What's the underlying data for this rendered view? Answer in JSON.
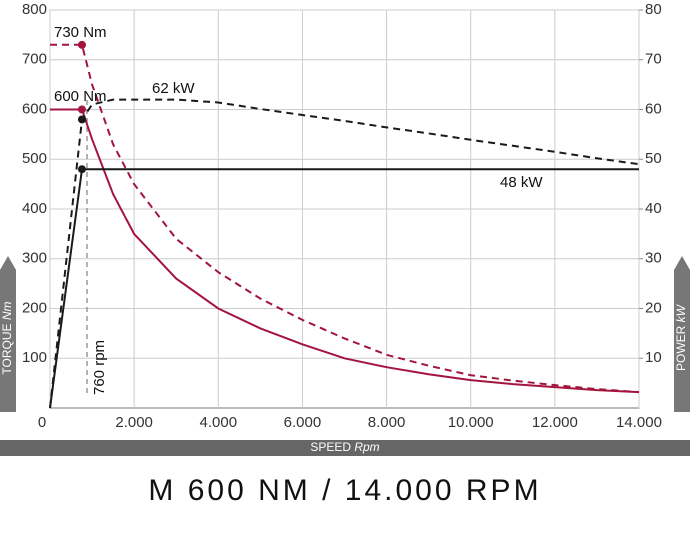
{
  "chart_data": {
    "type": "line",
    "title": "M 600 NM / 14.000 RPM",
    "xlabel": "SPEED",
    "xlabel_unit": "Rpm",
    "ylabel": "TORQUE",
    "ylabel_unit": "Nm",
    "y2label": "POWER",
    "y2label_unit": "kW",
    "x": [
      0,
      760,
      1000,
      1500,
      2000,
      3000,
      4000,
      5000,
      6000,
      7000,
      8000,
      9000,
      10000,
      11000,
      12000,
      13000,
      14000
    ],
    "series": [
      {
        "color": "#a3143f",
        "dash": false,
        "axis": "y",
        "values": [
          600,
          600,
          540,
          430,
          350,
          260,
          200,
          160,
          128,
          100,
          82,
          68,
          56,
          48,
          42,
          36,
          32
        ]
      },
      {
        "color": "#a3143f",
        "dash": true,
        "axis": "y",
        "values": [
          730,
          730,
          650,
          530,
          450,
          340,
          273,
          220,
          177,
          140,
          107,
          85,
          66,
          55,
          46,
          38,
          32
        ]
      },
      {
        "color": "#1a1a1a",
        "dash": false,
        "axis": "y2",
        "values": [
          0,
          48,
          48,
          48,
          48,
          48,
          48,
          48,
          48,
          48,
          48,
          48,
          48,
          48,
          48,
          48,
          48
        ]
      },
      {
        "color": "#1a1a1a",
        "dash": true,
        "axis": "y2",
        "values": [
          0,
          58,
          61,
          62,
          62,
          62,
          61.4,
          60.1,
          58.9,
          57.7,
          56.4,
          55.2,
          53.9,
          52.7,
          51.5,
          50.2,
          49
        ]
      }
    ],
    "annotations": [
      "730 Nm",
      "600 Nm",
      "62 kW",
      "48 kW",
      "760 rpm"
    ],
    "xlim": [
      0,
      14000
    ],
    "xticks": [
      0,
      {
        "value": 2000,
        "label": "2.000"
      },
      {
        "value": 4000,
        "label": "4.000"
      },
      {
        "value": 6000,
        "label": "6.000"
      },
      {
        "value": 8000,
        "label": "8.000"
      },
      {
        "value": 10000,
        "label": "10.000"
      },
      {
        "value": 12000,
        "label": "12.000"
      },
      {
        "value": 14000,
        "label": "14.000"
      }
    ],
    "ylim": [
      0,
      800
    ],
    "yticks": [
      100,
      200,
      300,
      400,
      500,
      600,
      700,
      800
    ],
    "y2lim": [
      0,
      80
    ],
    "y2ticks": [
      10,
      20,
      30,
      40,
      50,
      60,
      70,
      80
    ],
    "grid": true
  }
}
